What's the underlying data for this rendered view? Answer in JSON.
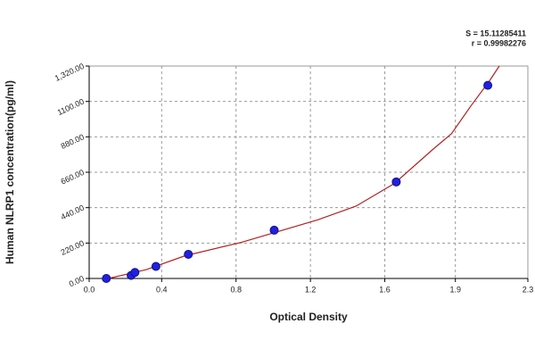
{
  "chart_data": {
    "type": "scatter",
    "annotations": [
      "S = 15.11285411",
      "r = 0.99982276"
    ],
    "xlabel": "Optical Density",
    "ylabel": "Human NLRP1 concentration(pg/ml)",
    "xlim": [
      0,
      2.3
    ],
    "ylim": [
      0,
      1320
    ],
    "xticks": [
      {
        "value": 0,
        "label": "0.0"
      },
      {
        "value": 0.38,
        "label": "0.4"
      },
      {
        "value": 0.77,
        "label": "0.8"
      },
      {
        "value": 1.16,
        "label": "1.2"
      },
      {
        "value": 1.55,
        "label": "1.6"
      },
      {
        "value": 1.92,
        "label": "1.9"
      },
      {
        "value": 2.3,
        "label": "2.3"
      }
    ],
    "yticks": [
      {
        "value": 0,
        "label": "0.00"
      },
      {
        "value": 220,
        "label": "220.00"
      },
      {
        "value": 440,
        "label": "440.00"
      },
      {
        "value": 660,
        "label": "660.00"
      },
      {
        "value": 880,
        "label": "880.00"
      },
      {
        "value": 1100,
        "label": "1100.00"
      },
      {
        "value": 1320,
        "label": "1,320.00"
      }
    ],
    "grid": true,
    "series": [
      {
        "type": "scatter",
        "color": "#2020e0",
        "x": [
          0.09,
          0.22,
          0.24,
          0.35,
          0.52,
          0.97,
          1.61,
          2.09
        ],
        "values": [
          0,
          18.75,
          37.5,
          75,
          150,
          300,
          600,
          1200
        ]
      },
      {
        "type": "line",
        "color": "#b22222",
        "x": [
          0.1,
          0.3,
          0.5,
          0.8,
          1.0,
          1.2,
          1.4,
          1.6,
          1.8,
          1.9,
          2.0,
          2.1,
          2.15
        ],
        "values": [
          0,
          55,
          140,
          225,
          295,
          365,
          450,
          590,
          800,
          900,
          1070,
          1230,
          1320
        ]
      }
    ]
  }
}
